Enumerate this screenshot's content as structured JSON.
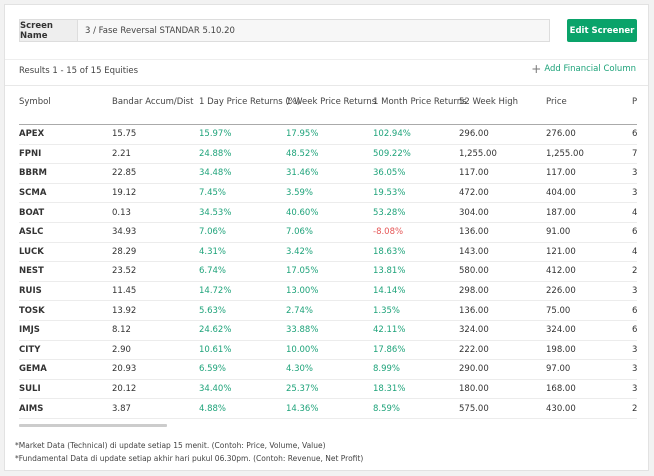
{
  "screen": {
    "label": "Screen Name",
    "value": "3 / Fase Reversal STANDAR 5.10.20",
    "edit_button": "Edit Screener"
  },
  "results": {
    "text": "Results 1 - 15 of 15 Equities",
    "add_column": "Add Financial Column"
  },
  "colors": {
    "positive": "#1ea37a",
    "negative": "#e55555",
    "button": "#0aa36a"
  },
  "table": {
    "headers": [
      "Symbol",
      "Bandar Accum/Dist",
      "1 Day Price Returns (%)",
      "1 Week Price Returns",
      "1 Month Price Returns",
      "52 Week High",
      "Price",
      "P"
    ],
    "rows": [
      [
        "APEX",
        "15.75",
        "15.97%",
        "17.95%",
        "102.94%",
        "296.00",
        "276.00",
        "6"
      ],
      [
        "FPNI",
        "2.21",
        "24.88%",
        "48.52%",
        "509.22%",
        "1,255.00",
        "1,255.00",
        "7"
      ],
      [
        "BBRM",
        "22.85",
        "34.48%",
        "31.46%",
        "36.05%",
        "117.00",
        "117.00",
        "3"
      ],
      [
        "SCMA",
        "19.12",
        "7.45%",
        "3.59%",
        "19.53%",
        "472.00",
        "404.00",
        "3"
      ],
      [
        "BOAT",
        "0.13",
        "34.53%",
        "40.60%",
        "53.28%",
        "304.00",
        "187.00",
        "4"
      ],
      [
        "ASLC",
        "34.93",
        "7.06%",
        "7.06%",
        "-8.08%",
        "136.00",
        "91.00",
        "6"
      ],
      [
        "LUCK",
        "28.29",
        "4.31%",
        "3.42%",
        "18.63%",
        "143.00",
        "121.00",
        "4"
      ],
      [
        "NEST",
        "23.52",
        "6.74%",
        "17.05%",
        "13.81%",
        "580.00",
        "412.00",
        "2"
      ],
      [
        "RUIS",
        "11.45",
        "14.72%",
        "13.00%",
        "14.14%",
        "298.00",
        "226.00",
        "3"
      ],
      [
        "TOSK",
        "13.92",
        "5.63%",
        "2.74%",
        "1.35%",
        "136.00",
        "75.00",
        "6"
      ],
      [
        "IMJS",
        "8.12",
        "24.62%",
        "33.88%",
        "42.11%",
        "324.00",
        "324.00",
        "6"
      ],
      [
        "CITY",
        "2.90",
        "10.61%",
        "10.00%",
        "17.86%",
        "222.00",
        "198.00",
        "3"
      ],
      [
        "GEMA",
        "20.93",
        "6.59%",
        "4.30%",
        "8.99%",
        "290.00",
        "97.00",
        "3"
      ],
      [
        "SULI",
        "20.12",
        "34.40%",
        "25.37%",
        "18.31%",
        "180.00",
        "168.00",
        "3"
      ],
      [
        "AIMS",
        "3.87",
        "4.88%",
        "14.36%",
        "8.59%",
        "575.00",
        "430.00",
        "2"
      ]
    ]
  },
  "footnotes": [
    "*Market Data (Technical) di update setiap 15 menit. (Contoh: Price, Volume, Value)",
    "*Fundamental Data di update setiap akhir hari pukul 06.30pm. (Contoh: Revenue, Net Profit)"
  ]
}
